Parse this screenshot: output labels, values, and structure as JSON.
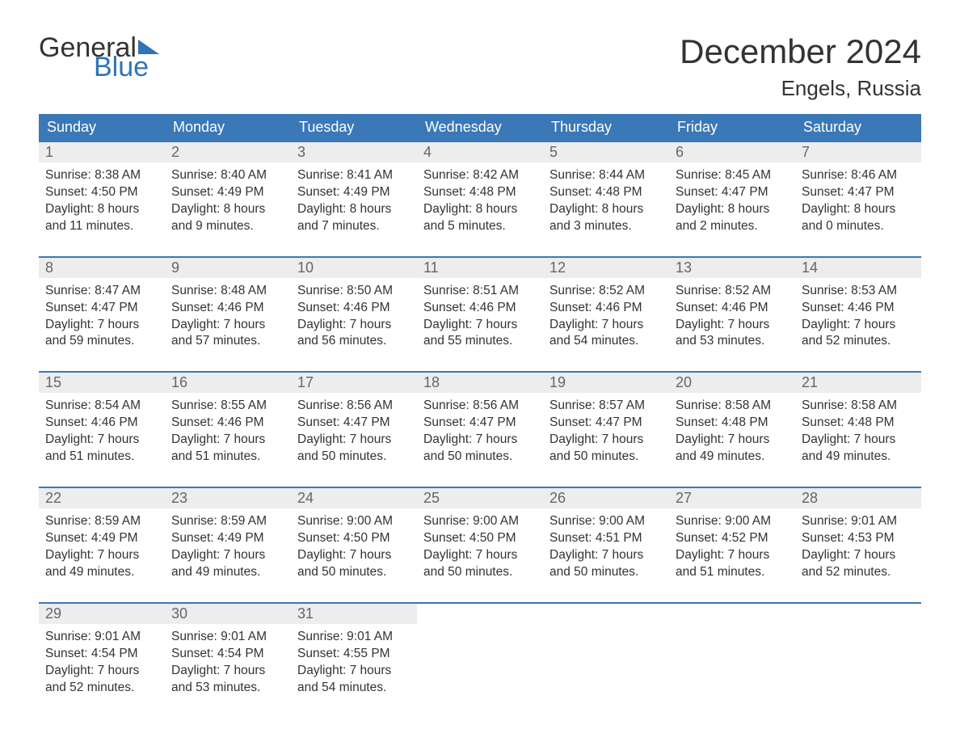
{
  "logo": {
    "part1": "General",
    "part2": "Blue"
  },
  "title": "December 2024",
  "location": "Engels, Russia",
  "colors": {
    "header_bg": "#3a78b7",
    "header_text": "#ffffff",
    "daynum_bg": "#ededed",
    "daynum_text": "#666666",
    "body_text": "#333333",
    "accent": "#2f74b5",
    "week_border": "#3a78b7"
  },
  "fonts": {
    "title_size_pt": 32,
    "location_size_pt": 20,
    "dow_size_pt": 14,
    "daynum_size_pt": 14,
    "body_size_pt": 12
  },
  "days_of_week": [
    "Sunday",
    "Monday",
    "Tuesday",
    "Wednesday",
    "Thursday",
    "Friday",
    "Saturday"
  ],
  "weeks": [
    [
      {
        "num": "1",
        "sunrise": "Sunrise: 8:38 AM",
        "sunset": "Sunset: 4:50 PM",
        "dl1": "Daylight: 8 hours",
        "dl2": "and 11 minutes."
      },
      {
        "num": "2",
        "sunrise": "Sunrise: 8:40 AM",
        "sunset": "Sunset: 4:49 PM",
        "dl1": "Daylight: 8 hours",
        "dl2": "and 9 minutes."
      },
      {
        "num": "3",
        "sunrise": "Sunrise: 8:41 AM",
        "sunset": "Sunset: 4:49 PM",
        "dl1": "Daylight: 8 hours",
        "dl2": "and 7 minutes."
      },
      {
        "num": "4",
        "sunrise": "Sunrise: 8:42 AM",
        "sunset": "Sunset: 4:48 PM",
        "dl1": "Daylight: 8 hours",
        "dl2": "and 5 minutes."
      },
      {
        "num": "5",
        "sunrise": "Sunrise: 8:44 AM",
        "sunset": "Sunset: 4:48 PM",
        "dl1": "Daylight: 8 hours",
        "dl2": "and 3 minutes."
      },
      {
        "num": "6",
        "sunrise": "Sunrise: 8:45 AM",
        "sunset": "Sunset: 4:47 PM",
        "dl1": "Daylight: 8 hours",
        "dl2": "and 2 minutes."
      },
      {
        "num": "7",
        "sunrise": "Sunrise: 8:46 AM",
        "sunset": "Sunset: 4:47 PM",
        "dl1": "Daylight: 8 hours",
        "dl2": "and 0 minutes."
      }
    ],
    [
      {
        "num": "8",
        "sunrise": "Sunrise: 8:47 AM",
        "sunset": "Sunset: 4:47 PM",
        "dl1": "Daylight: 7 hours",
        "dl2": "and 59 minutes."
      },
      {
        "num": "9",
        "sunrise": "Sunrise: 8:48 AM",
        "sunset": "Sunset: 4:46 PM",
        "dl1": "Daylight: 7 hours",
        "dl2": "and 57 minutes."
      },
      {
        "num": "10",
        "sunrise": "Sunrise: 8:50 AM",
        "sunset": "Sunset: 4:46 PM",
        "dl1": "Daylight: 7 hours",
        "dl2": "and 56 minutes."
      },
      {
        "num": "11",
        "sunrise": "Sunrise: 8:51 AM",
        "sunset": "Sunset: 4:46 PM",
        "dl1": "Daylight: 7 hours",
        "dl2": "and 55 minutes."
      },
      {
        "num": "12",
        "sunrise": "Sunrise: 8:52 AM",
        "sunset": "Sunset: 4:46 PM",
        "dl1": "Daylight: 7 hours",
        "dl2": "and 54 minutes."
      },
      {
        "num": "13",
        "sunrise": "Sunrise: 8:52 AM",
        "sunset": "Sunset: 4:46 PM",
        "dl1": "Daylight: 7 hours",
        "dl2": "and 53 minutes."
      },
      {
        "num": "14",
        "sunrise": "Sunrise: 8:53 AM",
        "sunset": "Sunset: 4:46 PM",
        "dl1": "Daylight: 7 hours",
        "dl2": "and 52 minutes."
      }
    ],
    [
      {
        "num": "15",
        "sunrise": "Sunrise: 8:54 AM",
        "sunset": "Sunset: 4:46 PM",
        "dl1": "Daylight: 7 hours",
        "dl2": "and 51 minutes."
      },
      {
        "num": "16",
        "sunrise": "Sunrise: 8:55 AM",
        "sunset": "Sunset: 4:46 PM",
        "dl1": "Daylight: 7 hours",
        "dl2": "and 51 minutes."
      },
      {
        "num": "17",
        "sunrise": "Sunrise: 8:56 AM",
        "sunset": "Sunset: 4:47 PM",
        "dl1": "Daylight: 7 hours",
        "dl2": "and 50 minutes."
      },
      {
        "num": "18",
        "sunrise": "Sunrise: 8:56 AM",
        "sunset": "Sunset: 4:47 PM",
        "dl1": "Daylight: 7 hours",
        "dl2": "and 50 minutes."
      },
      {
        "num": "19",
        "sunrise": "Sunrise: 8:57 AM",
        "sunset": "Sunset: 4:47 PM",
        "dl1": "Daylight: 7 hours",
        "dl2": "and 50 minutes."
      },
      {
        "num": "20",
        "sunrise": "Sunrise: 8:58 AM",
        "sunset": "Sunset: 4:48 PM",
        "dl1": "Daylight: 7 hours",
        "dl2": "and 49 minutes."
      },
      {
        "num": "21",
        "sunrise": "Sunrise: 8:58 AM",
        "sunset": "Sunset: 4:48 PM",
        "dl1": "Daylight: 7 hours",
        "dl2": "and 49 minutes."
      }
    ],
    [
      {
        "num": "22",
        "sunrise": "Sunrise: 8:59 AM",
        "sunset": "Sunset: 4:49 PM",
        "dl1": "Daylight: 7 hours",
        "dl2": "and 49 minutes."
      },
      {
        "num": "23",
        "sunrise": "Sunrise: 8:59 AM",
        "sunset": "Sunset: 4:49 PM",
        "dl1": "Daylight: 7 hours",
        "dl2": "and 49 minutes."
      },
      {
        "num": "24",
        "sunrise": "Sunrise: 9:00 AM",
        "sunset": "Sunset: 4:50 PM",
        "dl1": "Daylight: 7 hours",
        "dl2": "and 50 minutes."
      },
      {
        "num": "25",
        "sunrise": "Sunrise: 9:00 AM",
        "sunset": "Sunset: 4:50 PM",
        "dl1": "Daylight: 7 hours",
        "dl2": "and 50 minutes."
      },
      {
        "num": "26",
        "sunrise": "Sunrise: 9:00 AM",
        "sunset": "Sunset: 4:51 PM",
        "dl1": "Daylight: 7 hours",
        "dl2": "and 50 minutes."
      },
      {
        "num": "27",
        "sunrise": "Sunrise: 9:00 AM",
        "sunset": "Sunset: 4:52 PM",
        "dl1": "Daylight: 7 hours",
        "dl2": "and 51 minutes."
      },
      {
        "num": "28",
        "sunrise": "Sunrise: 9:01 AM",
        "sunset": "Sunset: 4:53 PM",
        "dl1": "Daylight: 7 hours",
        "dl2": "and 52 minutes."
      }
    ],
    [
      {
        "num": "29",
        "sunrise": "Sunrise: 9:01 AM",
        "sunset": "Sunset: 4:54 PM",
        "dl1": "Daylight: 7 hours",
        "dl2": "and 52 minutes."
      },
      {
        "num": "30",
        "sunrise": "Sunrise: 9:01 AM",
        "sunset": "Sunset: 4:54 PM",
        "dl1": "Daylight: 7 hours",
        "dl2": "and 53 minutes."
      },
      {
        "num": "31",
        "sunrise": "Sunrise: 9:01 AM",
        "sunset": "Sunset: 4:55 PM",
        "dl1": "Daylight: 7 hours",
        "dl2": "and 54 minutes."
      },
      null,
      null,
      null,
      null
    ]
  ]
}
